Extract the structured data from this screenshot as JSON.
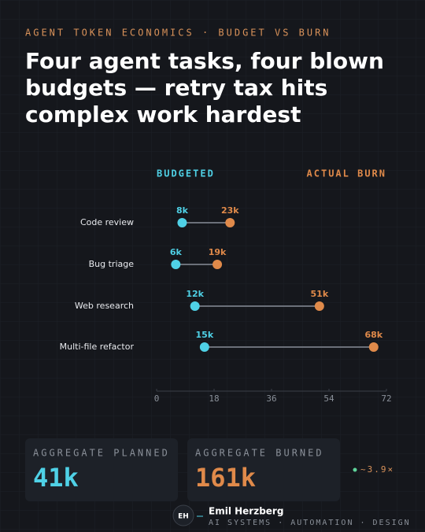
{
  "header": {
    "kicker": "AGENT TOKEN ECONOMICS · BUDGET VS BURN",
    "title_lines": [
      "Four agent tasks, four blown",
      "budgets — retry tax hits",
      "complex work hardest"
    ]
  },
  "chart_data": {
    "type": "dumbbell",
    "categories": [
      "Code review",
      "Bug triage",
      "Web research",
      "Multi-file refactor"
    ],
    "series": [
      {
        "name": "BUDGETED",
        "color": "#4fd1e6",
        "values": [
          8,
          6,
          12,
          15
        ],
        "value_labels": [
          "8k",
          "6k",
          "12k",
          "15k"
        ]
      },
      {
        "name": "ACTUAL BURN",
        "color": "#e08a4a",
        "values": [
          23,
          19,
          51,
          68
        ],
        "value_labels": [
          "23k",
          "19k",
          "51k",
          "68k"
        ]
      }
    ],
    "xlim": [
      0,
      72
    ],
    "xticks": [
      0,
      18,
      36,
      54,
      72
    ]
  },
  "stats": [
    {
      "label": "AGGREGATE PLANNED",
      "value": "41k",
      "color": "#4fd1e6"
    },
    {
      "label": "AGGREGATE BURNED",
      "value": "161k",
      "color": "#e08a4a"
    }
  ],
  "ratio": "~3.9×",
  "footer": {
    "initials": "EH",
    "name": "Emil Herzberg",
    "tagline": "AI SYSTEMS · AUTOMATION · DESIGN"
  }
}
